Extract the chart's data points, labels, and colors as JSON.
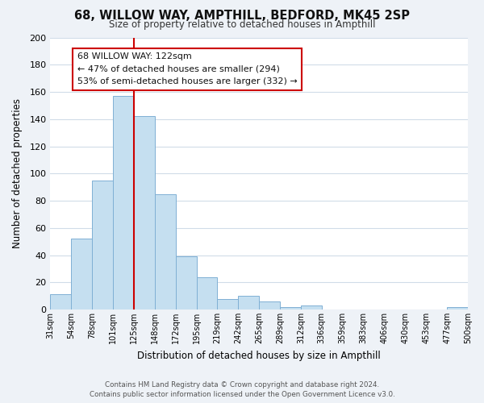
{
  "title": "68, WILLOW WAY, AMPTHILL, BEDFORD, MK45 2SP",
  "subtitle": "Size of property relative to detached houses in Ampthill",
  "xlabel": "Distribution of detached houses by size in Ampthill",
  "ylabel": "Number of detached properties",
  "bin_edges": [
    "31sqm",
    "54sqm",
    "78sqm",
    "101sqm",
    "125sqm",
    "148sqm",
    "172sqm",
    "195sqm",
    "219sqm",
    "242sqm",
    "265sqm",
    "289sqm",
    "312sqm",
    "336sqm",
    "359sqm",
    "383sqm",
    "406sqm",
    "430sqm",
    "453sqm",
    "477sqm",
    "500sqm"
  ],
  "bar_values": [
    11,
    52,
    95,
    157,
    142,
    85,
    39,
    24,
    8,
    10,
    6,
    2,
    3,
    0,
    0,
    0,
    0,
    0,
    0,
    2
  ],
  "bar_color": "#c5dff0",
  "bar_edge_color": "#7fb0d4",
  "vline_position": 4,
  "vline_color": "#cc0000",
  "ylim": [
    0,
    200
  ],
  "yticks": [
    0,
    20,
    40,
    60,
    80,
    100,
    120,
    140,
    160,
    180,
    200
  ],
  "annotation_title": "68 WILLOW WAY: 122sqm",
  "annotation_line1": "← 47% of detached houses are smaller (294)",
  "annotation_line2": "53% of semi-detached houses are larger (332) →",
  "annotation_box_fc": "#ffffff",
  "annotation_box_ec": "#cc0000",
  "footer_line1": "Contains HM Land Registry data © Crown copyright and database right 2024.",
  "footer_line2": "Contains public sector information licensed under the Open Government Licence v3.0.",
  "bg_color": "#eef2f7",
  "plot_bg_color": "#ffffff",
  "grid_color": "#d0dce8"
}
